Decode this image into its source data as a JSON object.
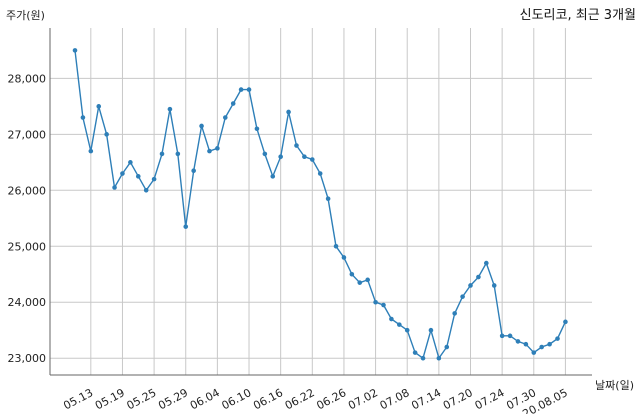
{
  "chart_data": {
    "type": "line",
    "title": "신도리코, 최근 3개월",
    "ylabel": "주가(원)",
    "xlabel": "날짜(일)",
    "ylim": [
      22700,
      28900
    ],
    "yticks": [
      23000,
      24000,
      25000,
      26000,
      27000,
      28000
    ],
    "ytick_labels": [
      "23,000",
      "24,000",
      "25,000",
      "26,000",
      "27,000",
      "28,000"
    ],
    "xticks": [
      {
        "index": 2,
        "label": "05.13"
      },
      {
        "index": 6,
        "label": "05.19"
      },
      {
        "index": 10,
        "label": "05.25"
      },
      {
        "index": 14,
        "label": "05.29"
      },
      {
        "index": 18,
        "label": "06.04"
      },
      {
        "index": 22,
        "label": "06.10"
      },
      {
        "index": 26,
        "label": "06.16"
      },
      {
        "index": 30,
        "label": "06.22"
      },
      {
        "index": 34,
        "label": "06.26"
      },
      {
        "index": 38,
        "label": "07.02"
      },
      {
        "index": 42,
        "label": "07.08"
      },
      {
        "index": 46,
        "label": "07.14"
      },
      {
        "index": 50,
        "label": "07.20"
      },
      {
        "index": 54,
        "label": "07.24"
      },
      {
        "index": 58,
        "label": "07.30"
      },
      {
        "index": 62,
        "label": "20.08.05"
      }
    ],
    "grid": true,
    "line_color": "#2e7fb8",
    "values": [
      28500,
      27300,
      26700,
      27500,
      27000,
      26050,
      26300,
      26500,
      26250,
      26000,
      26200,
      26650,
      27450,
      26650,
      25350,
      26350,
      27150,
      26700,
      26750,
      27300,
      27550,
      27800,
      27800,
      27100,
      26650,
      26250,
      26600,
      27400,
      26800,
      26600,
      26550,
      26300,
      25850,
      25000,
      24800,
      24500,
      24350,
      24400,
      24000,
      23950,
      23700,
      23600,
      23500,
      23100,
      23000,
      23500,
      23000,
      23200,
      23800,
      24100,
      24300,
      24450,
      24700,
      24300,
      23400,
      23400,
      23300,
      23250,
      23100,
      23200,
      23250,
      23350,
      23650
    ]
  }
}
